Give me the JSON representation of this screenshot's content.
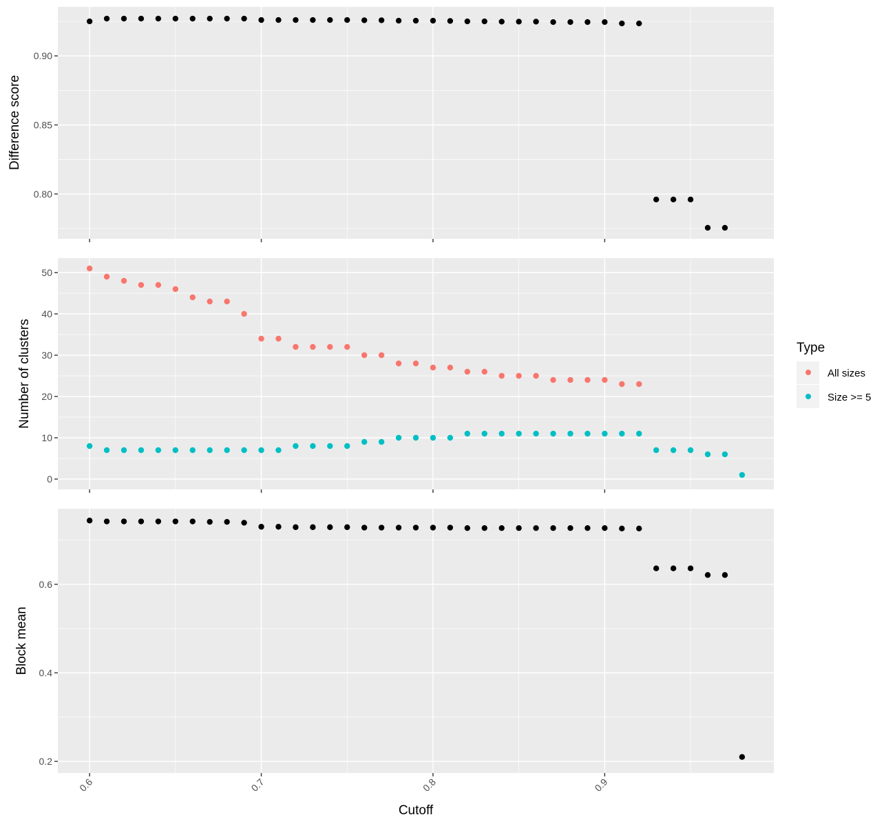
{
  "chart_data": [
    {
      "type": "scatter",
      "panel": "top",
      "ylabel": "Difference score",
      "yticks": [
        0.8,
        0.85,
        0.9
      ],
      "ytick_labels": [
        "0.80",
        "0.85",
        "0.90"
      ],
      "ylim": [
        0.7675,
        0.9355
      ],
      "color": "#000000",
      "x": [
        0.6,
        0.61,
        0.62,
        0.63,
        0.64,
        0.65,
        0.66,
        0.67,
        0.68,
        0.69,
        0.7,
        0.71,
        0.72,
        0.73,
        0.74,
        0.75,
        0.76,
        0.77,
        0.78,
        0.79,
        0.8,
        0.81,
        0.82,
        0.83,
        0.84,
        0.85,
        0.86,
        0.87,
        0.88,
        0.89,
        0.9,
        0.91,
        0.92,
        0.93,
        0.94,
        0.95,
        0.96,
        0.97
      ],
      "y": [
        0.925,
        0.927,
        0.927,
        0.927,
        0.927,
        0.927,
        0.927,
        0.927,
        0.927,
        0.927,
        0.926,
        0.926,
        0.926,
        0.926,
        0.926,
        0.926,
        0.9258,
        0.9258,
        0.9255,
        0.9255,
        0.9255,
        0.9253,
        0.925,
        0.925,
        0.9248,
        0.9248,
        0.9248,
        0.9245,
        0.9245,
        0.9245,
        0.9245,
        0.9235,
        0.9235,
        0.796,
        0.796,
        0.796,
        0.7755,
        0.7755
      ]
    },
    {
      "type": "scatter",
      "panel": "middle",
      "ylabel": "Number of clusters",
      "yticks": [
        0,
        10,
        20,
        30,
        40,
        50
      ],
      "ytick_labels": [
        "0",
        "10",
        "20",
        "30",
        "40",
        "50"
      ],
      "ylim": [
        -2.5,
        53.5
      ],
      "series": [
        {
          "name": "All sizes",
          "color": "#F8766D",
          "x": [
            0.6,
            0.61,
            0.62,
            0.63,
            0.64,
            0.65,
            0.66,
            0.67,
            0.68,
            0.69,
            0.7,
            0.71,
            0.72,
            0.73,
            0.74,
            0.75,
            0.76,
            0.77,
            0.78,
            0.79,
            0.8,
            0.81,
            0.82,
            0.83,
            0.84,
            0.85,
            0.86,
            0.87,
            0.88,
            0.89,
            0.9,
            0.91,
            0.92
          ],
          "y": [
            51,
            49,
            48,
            47,
            47,
            46,
            44,
            43,
            43,
            40,
            34,
            34,
            32,
            32,
            32,
            32,
            30,
            30,
            28,
            28,
            27,
            27,
            26,
            26,
            25,
            25,
            25,
            24,
            24,
            24,
            24,
            23,
            23
          ]
        },
        {
          "name": "Size >= 5",
          "color": "#00BFC4",
          "x": [
            0.6,
            0.61,
            0.62,
            0.63,
            0.64,
            0.65,
            0.66,
            0.67,
            0.68,
            0.69,
            0.7,
            0.71,
            0.72,
            0.73,
            0.74,
            0.75,
            0.76,
            0.77,
            0.78,
            0.79,
            0.8,
            0.81,
            0.82,
            0.83,
            0.84,
            0.85,
            0.86,
            0.87,
            0.88,
            0.89,
            0.9,
            0.91,
            0.92,
            0.93,
            0.94,
            0.95,
            0.96,
            0.97,
            0.98
          ],
          "y": [
            8,
            7,
            7,
            7,
            7,
            7,
            7,
            7,
            7,
            7,
            7,
            7,
            8,
            8,
            8,
            8,
            9,
            9,
            10,
            10,
            10,
            10,
            11,
            11,
            11,
            11,
            11,
            11,
            11,
            11,
            11,
            11,
            11,
            7,
            7,
            7,
            6,
            6,
            1
          ]
        }
      ]
    },
    {
      "type": "scatter",
      "panel": "bottom",
      "ylabel": "Block mean",
      "xlabel": "Cutoff",
      "yticks": [
        0.2,
        0.4,
        0.6
      ],
      "ytick_labels": [
        "0.2",
        "0.4",
        "0.6"
      ],
      "ylim": [
        0.1738,
        0.7708
      ],
      "color": "#000000",
      "x": [
        0.6,
        0.61,
        0.62,
        0.63,
        0.64,
        0.65,
        0.66,
        0.67,
        0.68,
        0.69,
        0.7,
        0.71,
        0.72,
        0.73,
        0.74,
        0.75,
        0.76,
        0.77,
        0.78,
        0.79,
        0.8,
        0.81,
        0.82,
        0.83,
        0.84,
        0.85,
        0.86,
        0.87,
        0.88,
        0.89,
        0.9,
        0.91,
        0.92,
        0.93,
        0.94,
        0.95,
        0.96,
        0.97,
        0.98
      ],
      "y": [
        0.744,
        0.742,
        0.742,
        0.742,
        0.742,
        0.742,
        0.742,
        0.741,
        0.741,
        0.739,
        0.73,
        0.73,
        0.729,
        0.729,
        0.729,
        0.729,
        0.728,
        0.728,
        0.728,
        0.728,
        0.728,
        0.728,
        0.727,
        0.727,
        0.727,
        0.727,
        0.727,
        0.727,
        0.727,
        0.727,
        0.727,
        0.726,
        0.726,
        0.636,
        0.636,
        0.636,
        0.621,
        0.621,
        0.21
      ]
    }
  ],
  "x_axis": {
    "xlim": [
      0.5815,
      0.9985
    ],
    "ticks": [
      0.6,
      0.7,
      0.8,
      0.9
    ],
    "tick_labels": [
      "0.6",
      "0.7",
      "0.8",
      "0.9"
    ],
    "label": "Cutoff"
  },
  "legend": {
    "title": "Type",
    "placement": "right",
    "items": [
      {
        "label": "All sizes",
        "color": "#F8766D"
      },
      {
        "label": "Size >= 5",
        "color": "#00BFC4"
      }
    ]
  }
}
